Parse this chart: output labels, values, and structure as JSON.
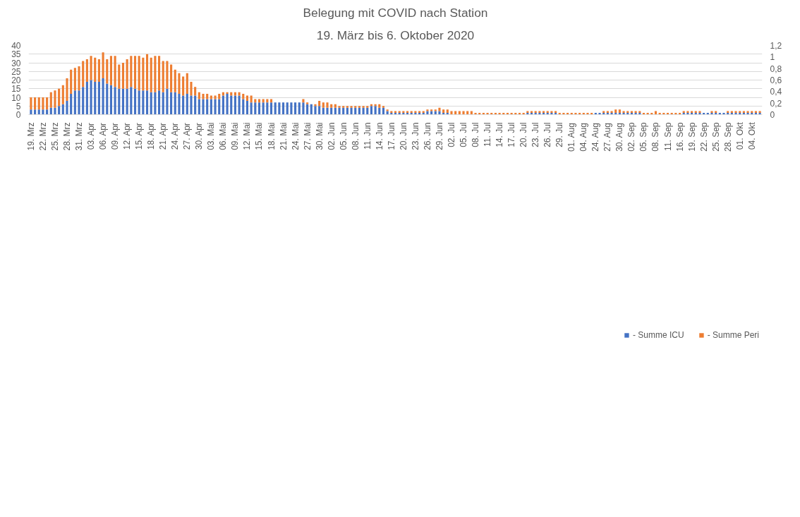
{
  "chart_data": {
    "type": "bar",
    "stacked": true,
    "title": "Belegung mit COVID nach Station",
    "subtitle": "19. März bis 6. Oktober 2020",
    "categories": [
      "19. Mrz",
      null,
      null,
      "22. Mrz",
      null,
      null,
      "25. Mrz",
      null,
      null,
      "28. Mrz",
      null,
      null,
      "31. Mrz",
      null,
      null,
      "03. Apr",
      null,
      null,
      "06. Apr",
      null,
      null,
      "09. Apr",
      null,
      null,
      "12. Apr",
      null,
      null,
      "15. Apr",
      null,
      null,
      "18. Apr",
      null,
      null,
      "21. Apr",
      null,
      null,
      "24. Apr",
      null,
      null,
      "27. Apr",
      null,
      null,
      "30. Apr",
      null,
      null,
      "03. Mai",
      null,
      null,
      "06. Mai",
      null,
      null,
      "09. Mai",
      null,
      null,
      "12. Mai",
      null,
      null,
      "15. Mai",
      null,
      null,
      "18. Mai",
      null,
      null,
      "21. Mai",
      null,
      null,
      "24. Mai",
      null,
      null,
      "27. Mai",
      null,
      null,
      "30. Mai",
      null,
      null,
      "02. Jun",
      null,
      null,
      "05. Jun",
      null,
      null,
      "08. Jun",
      null,
      null,
      "11. Jun",
      null,
      null,
      "14. Jun",
      null,
      null,
      "17. Jun",
      null,
      null,
      "20. Jun",
      null,
      null,
      "23. Jun",
      null,
      null,
      "26. Jun",
      null,
      null,
      "29. Jun",
      null,
      null,
      "02. Jul",
      null,
      null,
      "05. Jul",
      null,
      null,
      "08. Jul",
      null,
      null,
      "11. Jul",
      null,
      null,
      "14. Jul",
      null,
      null,
      "17. Jul",
      null,
      null,
      "20. Jul",
      null,
      null,
      "23. Jul",
      null,
      null,
      "26. Jul",
      null,
      null,
      "29. Jul",
      null,
      null,
      "01. Aug",
      null,
      null,
      "04. Aug",
      null,
      null,
      "24. Aug",
      null,
      null,
      "27. Aug",
      null,
      null,
      "30. Aug",
      null,
      null,
      "02. Sep",
      null,
      null,
      "05. Sep",
      null,
      null,
      "08. Sep",
      null,
      null,
      "11. Sep",
      null,
      null,
      "16. Sep",
      null,
      null,
      "19. Sep",
      null,
      null,
      "22. Sep",
      null,
      null,
      "25. Sep",
      null,
      null,
      "28. Sep",
      null,
      null,
      "01. Okt",
      null,
      null,
      "04. Okt",
      null,
      null
    ],
    "series": [
      {
        "name": "- Summe ICU",
        "color": "#4472c4",
        "values": [
          3,
          3,
          3,
          3,
          3,
          4,
          4,
          5,
          6,
          8,
          12,
          14,
          14,
          16,
          19,
          20,
          19,
          19,
          21,
          18,
          17,
          16,
          15,
          15,
          15,
          16,
          15,
          14,
          14,
          14,
          13,
          13,
          14,
          13,
          15,
          13,
          13,
          12,
          11,
          12,
          11,
          11,
          9,
          9,
          9,
          9,
          9,
          9,
          11,
          12,
          11,
          11,
          11,
          9,
          8,
          7,
          7,
          7,
          7,
          7,
          7,
          7,
          7,
          7,
          7,
          7,
          7,
          7,
          7,
          6,
          6,
          5,
          5,
          4,
          4,
          4,
          4,
          4,
          4,
          4,
          4,
          4,
          4,
          4,
          4,
          5,
          5,
          4,
          4,
          2,
          1,
          1,
          1,
          1,
          1,
          1,
          1,
          1,
          1,
          2,
          2,
          2,
          2,
          1,
          1,
          0,
          0,
          0,
          0,
          0,
          0,
          0,
          0,
          0,
          0,
          0,
          0,
          0,
          0,
          0,
          0,
          0,
          0,
          0,
          1,
          1,
          1,
          1,
          1,
          1,
          1,
          1,
          0,
          0,
          0,
          0,
          0,
          0,
          0,
          0,
          0,
          1,
          1,
          1,
          1,
          1,
          1,
          1,
          1,
          1,
          1,
          1,
          1,
          0,
          0,
          0,
          0,
          0,
          0,
          0,
          0,
          0,
          0,
          1,
          1,
          1,
          1,
          1,
          1,
          1,
          1,
          1,
          1,
          1,
          1,
          1,
          1,
          1,
          1,
          1,
          1,
          1,
          1
        ]
      },
      {
        "name": "- Summe Peri",
        "color": "#ed7d31",
        "values": [
          7,
          7,
          7,
          7,
          7,
          9,
          10,
          10,
          11,
          13,
          14,
          13,
          14,
          15,
          13,
          14,
          14,
          13,
          15,
          14,
          17,
          18,
          14,
          15,
          17,
          18,
          19,
          20,
          19,
          21,
          20,
          21,
          20,
          18,
          16,
          16,
          13,
          12,
          11,
          12,
          8,
          5,
          4,
          3,
          3,
          2,
          2,
          3,
          2,
          1,
          2,
          2,
          2,
          3,
          3,
          4,
          2,
          2,
          2,
          2,
          2,
          0,
          0,
          0,
          0,
          0,
          0,
          0,
          2,
          1,
          0,
          1,
          3,
          3,
          3,
          2,
          2,
          1,
          1,
          1,
          1,
          1,
          1,
          1,
          1,
          1,
          1,
          2,
          1,
          1,
          1,
          1,
          1,
          1,
          1,
          1,
          1,
          1,
          1,
          1,
          1,
          1,
          2,
          2,
          2,
          2,
          2,
          2,
          2,
          2,
          2,
          1,
          1,
          1,
          1,
          1,
          1,
          1,
          1,
          1,
          1,
          1,
          1,
          1,
          1,
          1,
          1,
          1,
          1,
          1,
          1,
          1,
          1,
          1,
          1,
          1,
          1,
          1,
          1,
          1,
          1,
          0,
          0,
          1,
          1,
          1,
          2,
          2,
          1,
          1,
          1,
          1,
          1,
          1,
          1,
          1,
          2,
          1,
          1,
          1,
          1,
          1,
          1,
          1,
          1,
          1,
          1,
          1,
          0,
          0,
          1,
          1,
          0,
          0,
          1,
          1,
          1,
          1,
          1,
          1,
          1,
          1,
          1
        ]
      }
    ],
    "ylim": [
      0,
      40
    ],
    "yticks": [
      0,
      5,
      10,
      15,
      20,
      25,
      30,
      35,
      40
    ],
    "y2lim": [
      0,
      1.2
    ],
    "y2ticks": [
      0,
      {
        "value": 0.2,
        "label": "0,2"
      },
      {
        "value": 0.4,
        "label": "0,4"
      },
      {
        "value": 0.6,
        "label": "0,6"
      },
      {
        "value": 0.8,
        "label": "0,8"
      },
      1,
      {
        "value": 1.2,
        "label": "1,2"
      }
    ],
    "grid": "y",
    "legend": "bottom"
  }
}
